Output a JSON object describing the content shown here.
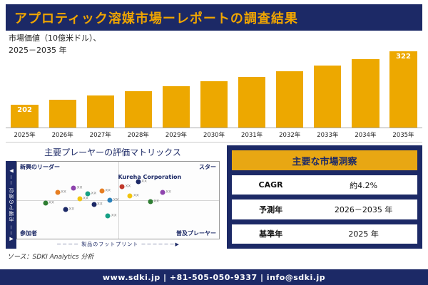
{
  "header": {
    "title": "アプロティック溶媒市場ーレポートの調査結果"
  },
  "chart_data": [
    {
      "type": "bar",
      "title": "市場価値（10億米ドル）、2025－2035 年",
      "caption_line1": "市場価値（10億米ドル）、",
      "caption_line2": "2025－2035 年",
      "categories": [
        "2025年",
        "2026年",
        "2027年",
        "2028年",
        "2029年",
        "2030年",
        "2031年",
        "2032年",
        "2033年",
        "2034年",
        "2035年"
      ],
      "values": [
        202,
        212,
        222,
        232,
        243,
        254,
        265,
        277,
        290,
        305,
        322
      ],
      "labeled_bars": [
        0,
        10
      ],
      "xlabel": "",
      "ylabel": "10億米ドル",
      "ylim": [
        150,
        340
      ],
      "bar_color": "#EDA800",
      "grid": false,
      "legend": "none"
    },
    {
      "type": "scatter",
      "title": "主要プレーヤーの評価マトリックス",
      "xlabel": "製品のフットプリント",
      "ylabel": "市場での地位",
      "xlabel_display": "－－－－ 製品のフットプリント －－－－－－▶",
      "ylabel_display": "◀－－ 市場での地位 －－▶",
      "quadrants": {
        "top_left": "新興のリーダー",
        "top_right": "スター",
        "bottom_left": "参加者",
        "bottom_right": "普及プレーヤー"
      },
      "annotation": "Kureha Corporation",
      "point_label": "xx",
      "points": [
        {
          "x": 14,
          "y": 46,
          "color": "#2e7d32",
          "label": "xx"
        },
        {
          "x": 20,
          "y": 60,
          "color": "#e67e22",
          "label": "xx"
        },
        {
          "x": 24,
          "y": 38,
          "color": "#1c2966",
          "label": "xx"
        },
        {
          "x": 28,
          "y": 66,
          "color": "#8e44ad",
          "label": "xx"
        },
        {
          "x": 31,
          "y": 52,
          "color": "#f1c40f",
          "label": "xx"
        },
        {
          "x": 35,
          "y": 58,
          "color": "#16a085",
          "label": "xx"
        },
        {
          "x": 38,
          "y": 44,
          "color": "#1c2966",
          "label": "xx"
        },
        {
          "x": 42,
          "y": 62,
          "color": "#e67e22",
          "label": "xx"
        },
        {
          "x": 46,
          "y": 50,
          "color": "#2980b9",
          "label": "xx"
        },
        {
          "x": 52,
          "y": 68,
          "color": "#c0392b",
          "label": "xx"
        },
        {
          "x": 56,
          "y": 56,
          "color": "#f1c40f",
          "label": "xx"
        },
        {
          "x": 60,
          "y": 74,
          "color": "#1c2966",
          "label": "xx"
        },
        {
          "x": 66,
          "y": 48,
          "color": "#2e7d32",
          "label": "xx"
        },
        {
          "x": 72,
          "y": 60,
          "color": "#8e44ad",
          "label": "xx"
        },
        {
          "x": 45,
          "y": 30,
          "color": "#16a085",
          "label": "xx"
        }
      ]
    }
  ],
  "insights": {
    "title": "主要な市場洞察",
    "rows": [
      {
        "label": "CAGR",
        "value": "約4.2%"
      },
      {
        "label": "予測年",
        "value": "2026－2035 年"
      },
      {
        "label": "基準年",
        "value": "2025 年"
      }
    ]
  },
  "source": "ソース：SDKI Analytics 分析",
  "footer": "www.sdki.jp | +81-505-050-9337 | info@sdki.jp",
  "colors": {
    "navy": "#1c2966",
    "gold": "#EDA800",
    "header_gold": "#E8A713",
    "title_text": "#F0A500"
  }
}
